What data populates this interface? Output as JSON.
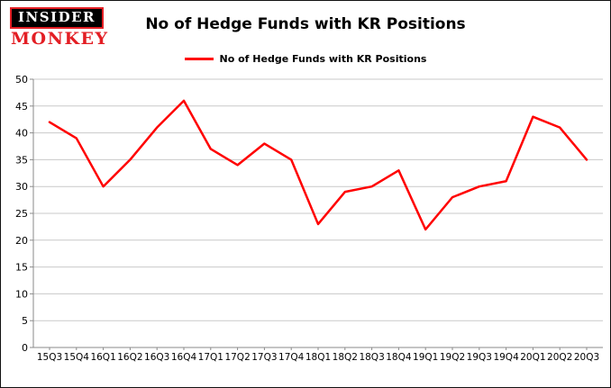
{
  "logo": {
    "line1": "INSIDER",
    "line2": "MONKEY",
    "accent_color": "#e31e24"
  },
  "header": {
    "title": "No of Hedge Funds with KR Positions"
  },
  "legend": {
    "label": "No of Hedge Funds with KR Positions",
    "color": "#ff0000"
  },
  "chart_data": {
    "type": "line",
    "title": "No of Hedge Funds with KR Positions",
    "categories": [
      "15Q3",
      "15Q4",
      "16Q1",
      "16Q2",
      "16Q3",
      "16Q4",
      "17Q1",
      "17Q2",
      "17Q3",
      "17Q4",
      "18Q1",
      "18Q2",
      "18Q3",
      "18Q4",
      "19Q1",
      "19Q2",
      "19Q3",
      "19Q4",
      "20Q1",
      "20Q2",
      "20Q3"
    ],
    "series": [
      {
        "name": "No of Hedge Funds with KR Positions",
        "color": "#ff0000",
        "values": [
          42,
          39,
          30,
          35,
          41,
          46,
          37,
          34,
          38,
          35,
          23,
          29,
          30,
          33,
          22,
          28,
          30,
          31,
          43,
          41,
          35
        ]
      }
    ],
    "xlabel": "",
    "ylabel": "",
    "ylim": [
      0,
      50
    ],
    "yticks": [
      0,
      5,
      10,
      15,
      20,
      25,
      30,
      35,
      40,
      45,
      50
    ],
    "grid": true,
    "grid_color": "#c9c9c9",
    "axis_color": "#8a8a8a",
    "line_width": 2.5,
    "legend_position": "top-center"
  }
}
